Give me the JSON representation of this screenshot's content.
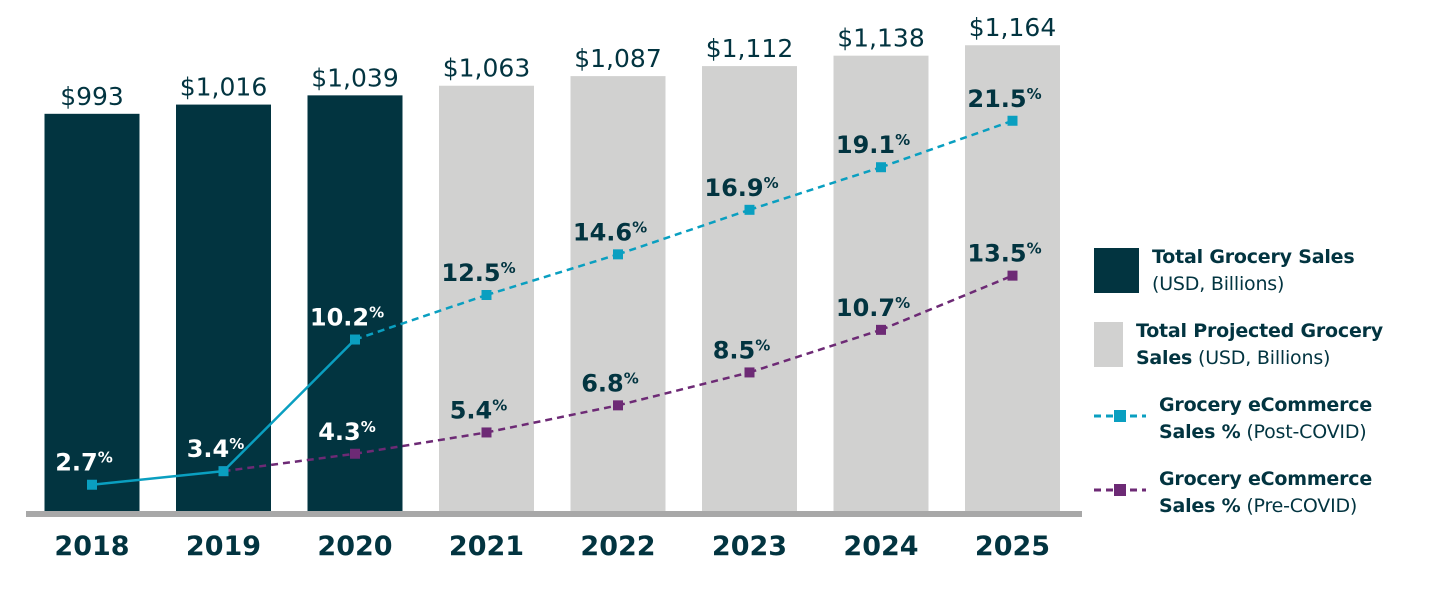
{
  "chart_data": {
    "type": "bar",
    "categories": [
      "2018",
      "2019",
      "2020",
      "2021",
      "2022",
      "2023",
      "2024",
      "2025"
    ],
    "series": [
      {
        "name": "Total Grocery Sales (USD, Billions)",
        "kind": "bar",
        "values": [
          993,
          1016,
          1039,
          null,
          null,
          null,
          null,
          null
        ],
        "labels": [
          "$993",
          "$1,016",
          "$1,039",
          null,
          null,
          null,
          null,
          null
        ],
        "color": "#023440"
      },
      {
        "name": "Total Projected Grocery Sales (USD, Billions)",
        "kind": "bar",
        "values": [
          null,
          null,
          null,
          1063,
          1087,
          1112,
          1138,
          1164
        ],
        "labels": [
          null,
          null,
          null,
          "$1,063",
          "$1,087",
          "$1,112",
          "$1,138",
          "$1,164"
        ],
        "color": "#d1d1d0"
      },
      {
        "name": "Grocery eCommerce Sales % (Post-COVID)",
        "kind": "line",
        "values": [
          2.7,
          3.4,
          10.2,
          12.5,
          14.6,
          16.9,
          19.1,
          21.5
        ],
        "labels": [
          "2.7",
          "3.4",
          "10.2",
          "12.5",
          "14.6",
          "16.9",
          "19.1",
          "21.5"
        ],
        "solid_until": "2020",
        "color": "#0a9fc0"
      },
      {
        "name": "Grocery eCommerce Sales % (Pre-COVID)",
        "kind": "line",
        "values": [
          null,
          3.4,
          4.3,
          5.4,
          6.8,
          8.5,
          10.7,
          13.5
        ],
        "labels": [
          null,
          null,
          "4.3",
          "5.4",
          "6.8",
          "8.5",
          "10.7",
          "13.5"
        ],
        "color": "#6d2a75"
      }
    ],
    "percent_symbol": "%",
    "bar_ylim": [
      0,
      1164
    ],
    "legend_position": "right",
    "grid": false
  },
  "legend": [
    {
      "bold": "Total Grocery Sales",
      "normal": "(USD, Billions)"
    },
    {
      "bold": "Total Projected Grocery Sales",
      "normal": "(USD, Billions)"
    },
    {
      "bold": "Grocery eCommerce Sales %",
      "normal": "(Post-COVID)"
    },
    {
      "bold": "Grocery eCommerce Sales %",
      "normal": "(Pre-COVID)"
    }
  ]
}
